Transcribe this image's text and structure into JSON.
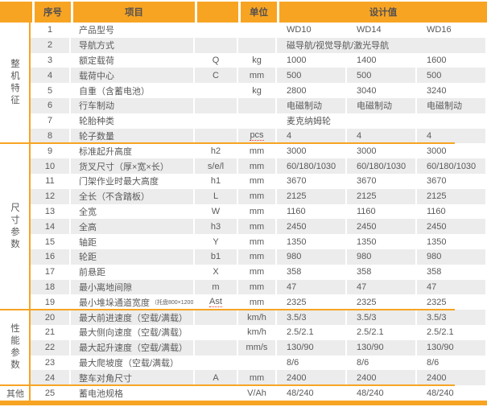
{
  "colors": {
    "accent": "#F7A423",
    "stripe": "#ECECEC",
    "text": "#5A5A5A",
    "spellcheck_underline": "#E23A2E"
  },
  "header": {
    "no": "序号",
    "item": "项目",
    "sym": "",
    "unit": "单位",
    "design": "设计值"
  },
  "sections": [
    {
      "label": "整机特征",
      "from": 1,
      "to": 8,
      "orientation": "vertical"
    },
    {
      "label": "尺寸参数",
      "from": 9,
      "to": 19,
      "orientation": "vertical"
    },
    {
      "label": "性能参数",
      "from": 20,
      "to": 24,
      "orientation": "vertical"
    },
    {
      "label": "其他",
      "from": 25,
      "to": 25,
      "orientation": "horizontal"
    }
  ],
  "rows": [
    {
      "no": "1",
      "item": "产品型号",
      "sym": "",
      "unit": "",
      "values": [
        "WD10",
        "WD14",
        "WD16"
      ]
    },
    {
      "no": "2",
      "item": "导航方式",
      "sym": "",
      "unit": "",
      "span": "磁导航/视觉导航/激光导航"
    },
    {
      "no": "3",
      "item": "额定载荷",
      "sym": "Q",
      "unit": "kg",
      "values": [
        "1000",
        "1400",
        "1600"
      ]
    },
    {
      "no": "4",
      "item": "载荷中心",
      "sym": "C",
      "unit": "mm",
      "values": [
        "500",
        "500",
        "500"
      ]
    },
    {
      "no": "5",
      "item": "自重（含蓄电池）",
      "sym": "",
      "unit": "kg",
      "values": [
        "2800",
        "3040",
        "3240"
      ]
    },
    {
      "no": "6",
      "item": "行车制动",
      "sym": "",
      "unit": "",
      "values": [
        "电磁制动",
        "电磁制动",
        "电磁制动"
      ]
    },
    {
      "no": "7",
      "item": "轮胎种类",
      "sym": "",
      "unit": "",
      "span": "麦克纳姆轮"
    },
    {
      "no": "8",
      "item": "轮子数量",
      "sym": "",
      "unit": "pcs",
      "unit_spell": true,
      "values": [
        "4",
        "4",
        "4"
      ]
    },
    {
      "no": "9",
      "item": "标准起升高度",
      "sym": "h2",
      "unit": "mm",
      "values": [
        "3000",
        "3000",
        "3000"
      ]
    },
    {
      "no": "10",
      "item": "货叉尺寸（厚×宽×长）",
      "sym": "s/e/l",
      "unit": "mm",
      "values": [
        "60/180/1030",
        "60/180/1030",
        "60/180/1030"
      ]
    },
    {
      "no": "11",
      "item": "门架作业时最大高度",
      "sym": "h1",
      "unit": "mm",
      "values": [
        "3670",
        "3670",
        "3670"
      ]
    },
    {
      "no": "12",
      "item": "全长（不含踏板）",
      "sym": "L",
      "unit": "mm",
      "values": [
        "2125",
        "2125",
        "2125"
      ]
    },
    {
      "no": "13",
      "item": "全宽",
      "sym": "W",
      "unit": "mm",
      "values": [
        "1160",
        "1160",
        "1160"
      ]
    },
    {
      "no": "14",
      "item": "全高",
      "sym": "h3",
      "unit": "mm",
      "values": [
        "2450",
        "2450",
        "2450"
      ]
    },
    {
      "no": "15",
      "item": "轴距",
      "sym": "Y",
      "unit": "mm",
      "values": [
        "1350",
        "1350",
        "1350"
      ]
    },
    {
      "no": "16",
      "item": "轮距",
      "sym": "b1",
      "unit": "mm",
      "values": [
        "980",
        "980",
        "980"
      ]
    },
    {
      "no": "17",
      "item": "前悬距",
      "sym": "X",
      "unit": "mm",
      "values": [
        "358",
        "358",
        "358"
      ]
    },
    {
      "no": "18",
      "item": "最小离地间隙",
      "sym": "m",
      "unit": "mm",
      "values": [
        "47",
        "47",
        "47"
      ]
    },
    {
      "no": "19",
      "item": "最小堆垛通道宽度",
      "item_small": "（托盘800×1200）",
      "sym": "Ast",
      "sym_spell": true,
      "unit": "mm",
      "values": [
        "2325",
        "2325",
        "2325"
      ]
    },
    {
      "no": "20",
      "item": "最大前进速度（空载/满载）",
      "sym": "",
      "unit": "km/h",
      "values": [
        "3.5/3",
        "3.5/3",
        "3.5/3"
      ]
    },
    {
      "no": "21",
      "item": "最大侧向速度（空载/满载）",
      "sym": "",
      "unit": "km/h",
      "values": [
        "2.5/2.1",
        "2.5/2.1",
        "2.5/2.1"
      ]
    },
    {
      "no": "22",
      "item": "最大起升速度（空载/满载）",
      "sym": "",
      "unit": "mm/s",
      "values": [
        "130/90",
        "130/90",
        "130/90"
      ]
    },
    {
      "no": "23",
      "item": "最大爬坡度（空载/满载）",
      "sym": "",
      "unit": "",
      "values": [
        "8/6",
        "8/6",
        "8/6"
      ]
    },
    {
      "no": "24",
      "item": "整车对角尺寸",
      "sym": "A",
      "unit": "mm",
      "values": [
        "2400",
        "2400",
        "2400"
      ]
    },
    {
      "no": "25",
      "item": "蓄电池规格",
      "sym": "",
      "unit": "V/Ah",
      "values": [
        "48/240",
        "48/240",
        "48/240"
      ]
    }
  ]
}
